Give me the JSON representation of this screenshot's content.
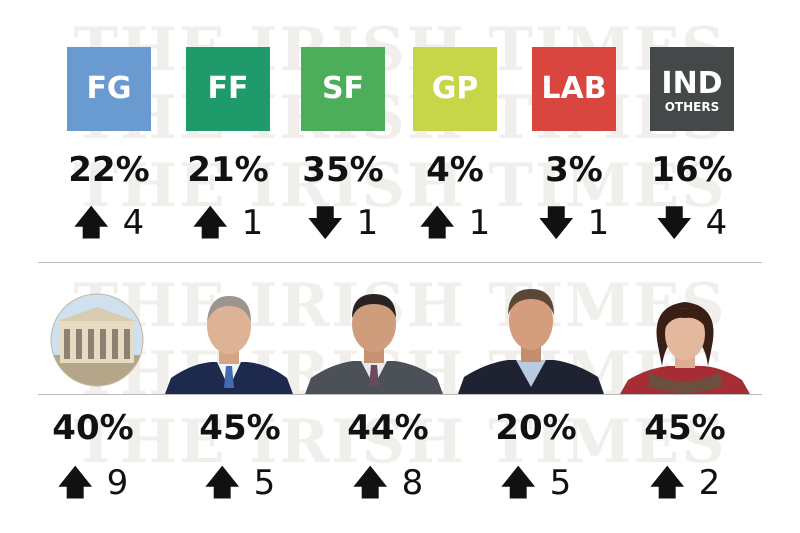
{
  "watermark": "THE IRISH TIMES",
  "colors": {
    "FG": "#6a9bd0",
    "FF": "#1f9a6b",
    "SF": "#4cad5a",
    "GP": "#c7d648",
    "LAB": "#d9453f",
    "IND": "#454848"
  },
  "parties": [
    {
      "abbr": "FG",
      "sub": "",
      "pct": "22%",
      "arrow": "🡅",
      "change": "4"
    },
    {
      "abbr": "FF",
      "sub": "",
      "pct": "21%",
      "arrow": "🡅",
      "change": "1"
    },
    {
      "abbr": "SF",
      "sub": "",
      "pct": "35%",
      "arrow": "🡇",
      "change": "1"
    },
    {
      "abbr": "GP",
      "sub": "",
      "pct": "4%",
      "arrow": "🡅",
      "change": "1"
    },
    {
      "abbr": "LAB",
      "sub": "",
      "pct": "3%",
      "arrow": "🡇",
      "change": "1"
    },
    {
      "abbr": "IND",
      "sub": "OTHERS",
      "pct": "16%",
      "arrow": "🡇",
      "change": "4"
    }
  ],
  "leaders": [
    {
      "icon": "government-buildings-icon",
      "pct": "40%",
      "arrow": "🡅",
      "change": "9"
    },
    {
      "icon": "leader-portrait-icon",
      "pct": "45%",
      "arrow": "🡅",
      "change": "5"
    },
    {
      "icon": "leader-portrait-icon",
      "pct": "44%",
      "arrow": "🡅",
      "change": "8"
    },
    {
      "icon": "leader-portrait-icon",
      "pct": "20%",
      "arrow": "🡅",
      "change": "5"
    },
    {
      "icon": "leader-portrait-icon",
      "pct": "45%",
      "arrow": "🡅",
      "change": "2"
    }
  ],
  "chart_data": [
    {
      "type": "table",
      "categories": [
        "FG",
        "FF",
        "SF",
        "GP",
        "LAB",
        "IND OTHERS"
      ],
      "series": [
        {
          "name": "",
          "values": [
            22,
            21,
            35,
            4,
            3,
            16
          ]
        }
      ],
      "change": [
        4,
        1,
        -1,
        1,
        -1,
        -4
      ]
    },
    {
      "type": "table",
      "categories": [
        "",
        "",
        "",
        "",
        ""
      ],
      "series": [
        {
          "name": "",
          "values": [
            40,
            45,
            44,
            20,
            45
          ]
        }
      ],
      "change": [
        9,
        5,
        8,
        5,
        2
      ]
    }
  ]
}
